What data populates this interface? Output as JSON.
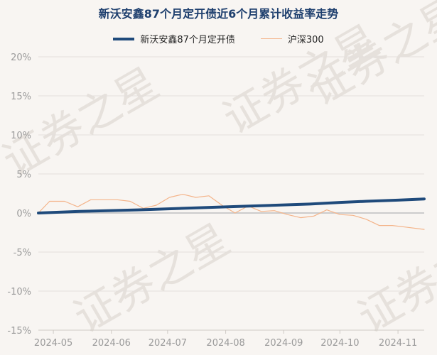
{
  "chart_data": {
    "type": "line",
    "title": "新沃安鑫87个月定开债近6个月累计收益率走势",
    "xlabel": "",
    "ylabel": "",
    "ylim": [
      -15,
      20
    ],
    "yticks": [
      20,
      15,
      10,
      5,
      0,
      -5,
      -10,
      -15
    ],
    "ytick_labels": [
      "20%",
      "15%",
      "10%",
      "5%",
      "0%",
      "-5%",
      "-10%",
      "-15%"
    ],
    "xticks": [
      "2024-05-01",
      "2024-06-01",
      "2024-07-01",
      "2024-08-01",
      "2024-09-01",
      "2024-10-01",
      "2024-11-01"
    ],
    "xtick_labels": [
      "2024-05",
      "2024-06",
      "2024-07",
      "2024-08",
      "2024-09",
      "2024-10",
      "2024-11"
    ],
    "xlim": [
      "2024-04-23",
      "2024-11-15"
    ],
    "grid": "horizontal",
    "legend_position": "top",
    "watermark": "证券之星",
    "series": [
      {
        "name": "新沃安鑫87个月定开债",
        "color": "#1f4a7b",
        "line": "thick",
        "points": [
          [
            "2024-04-23",
            0.0
          ],
          [
            "2024-05-15",
            0.2
          ],
          [
            "2024-06-15",
            0.4
          ],
          [
            "2024-07-15",
            0.65
          ],
          [
            "2024-08-15",
            0.9
          ],
          [
            "2024-09-15",
            1.15
          ],
          [
            "2024-10-01",
            1.35
          ],
          [
            "2024-10-15",
            1.5
          ],
          [
            "2024-11-01",
            1.65
          ],
          [
            "2024-11-15",
            1.8
          ]
        ]
      },
      {
        "name": "沪深300",
        "color": "#f4b48a",
        "line": "thin",
        "points": [
          [
            "2024-04-23",
            0.0
          ],
          [
            "2024-04-29",
            1.5
          ],
          [
            "2024-05-07",
            1.5
          ],
          [
            "2024-05-14",
            0.8
          ],
          [
            "2024-05-21",
            1.7
          ],
          [
            "2024-05-28",
            1.7
          ],
          [
            "2024-06-04",
            1.7
          ],
          [
            "2024-06-11",
            1.5
          ],
          [
            "2024-06-18",
            0.6
          ],
          [
            "2024-06-25",
            1.0
          ],
          [
            "2024-07-02",
            2.0
          ],
          [
            "2024-07-09",
            2.4
          ],
          [
            "2024-07-16",
            2.0
          ],
          [
            "2024-07-23",
            2.2
          ],
          [
            "2024-07-30",
            1.0
          ],
          [
            "2024-08-06",
            0.0
          ],
          [
            "2024-08-13",
            0.9
          ],
          [
            "2024-08-20",
            0.2
          ],
          [
            "2024-08-27",
            0.3
          ],
          [
            "2024-09-03",
            -0.2
          ],
          [
            "2024-09-10",
            -0.6
          ],
          [
            "2024-09-17",
            -0.4
          ],
          [
            "2024-09-24",
            0.4
          ],
          [
            "2024-10-01",
            -0.2
          ],
          [
            "2024-10-08",
            -0.3
          ],
          [
            "2024-10-15",
            -0.8
          ],
          [
            "2024-10-22",
            -1.6
          ],
          [
            "2024-10-29",
            -1.6
          ],
          [
            "2024-11-05",
            -1.8
          ],
          [
            "2024-11-15",
            -2.1
          ]
        ]
      }
    ]
  }
}
